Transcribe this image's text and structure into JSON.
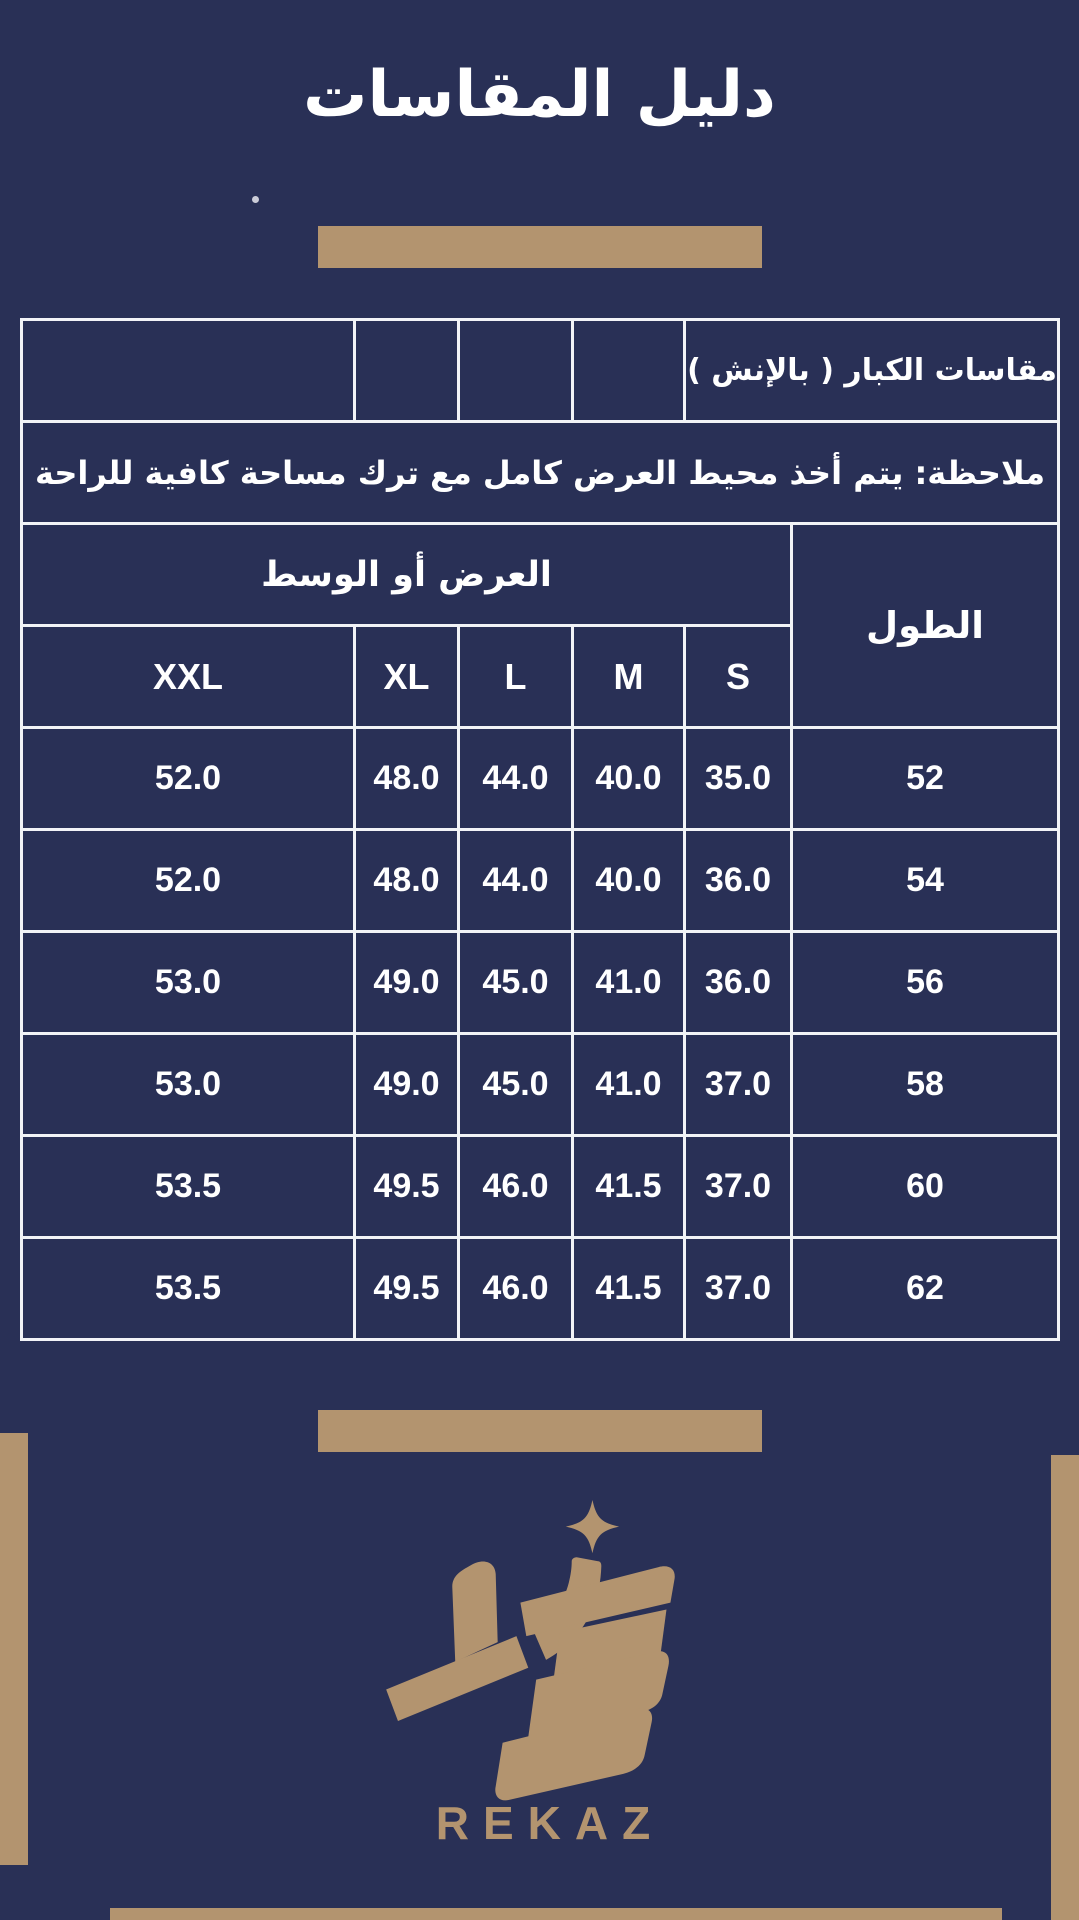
{
  "page": {
    "title": "دليل المقاسات",
    "background_color": "#293056",
    "accent_color": "#b3946f",
    "text_color": "#ffffff"
  },
  "size_table": {
    "adult_sizes_label": "مقاسات الكبار ( بالإنش ) :",
    "comfort_note": "ملاحظة: يتم أخذ محيط العرض كامل مع ترك مساحة كافية للراحة",
    "width_group_label": "العرض أو الوسط",
    "length_label": "الطول",
    "size_labels": [
      "S",
      "M",
      "L",
      "XL",
      "XXL"
    ],
    "rows": [
      {
        "length": "52",
        "values": [
          "35.0",
          "40.0",
          "44.0",
          "48.0",
          "52.0"
        ]
      },
      {
        "length": "54",
        "values": [
          "36.0",
          "40.0",
          "44.0",
          "48.0",
          "52.0"
        ]
      },
      {
        "length": "56",
        "values": [
          "36.0",
          "41.0",
          "45.0",
          "49.0",
          "53.0"
        ]
      },
      {
        "length": "58",
        "values": [
          "37.0",
          "41.0",
          "45.0",
          "49.0",
          "53.0"
        ]
      },
      {
        "length": "60",
        "values": [
          "37.0",
          "41.5",
          "46.0",
          "49.5",
          "53.5"
        ]
      },
      {
        "length": "62",
        "values": [
          "37.0",
          "41.5",
          "46.0",
          "49.5",
          "53.5"
        ]
      }
    ]
  },
  "brand": {
    "wordmark": "REKAZ",
    "logo_icon": "rekaz-calligraphy-mark",
    "star_icon": "four-point-star"
  }
}
